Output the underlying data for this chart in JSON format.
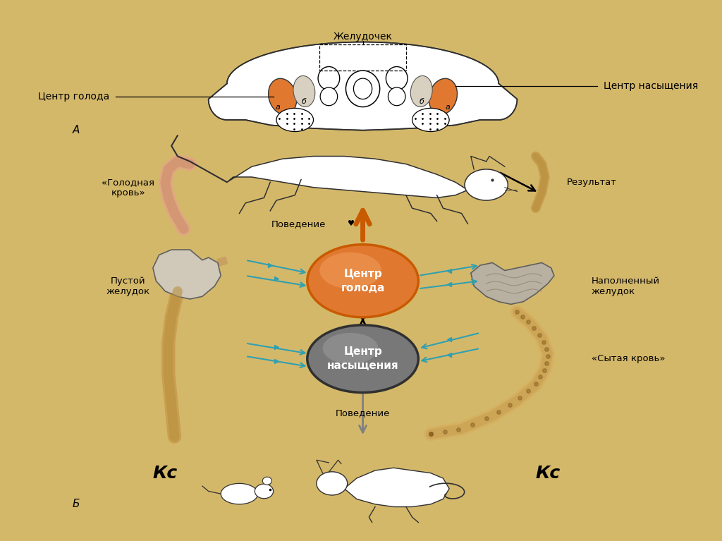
{
  "bg_outer": "#d4b86a",
  "bg_panel": "#f2ead8",
  "orange_dark": "#c85a00",
  "orange_med": "#e07830",
  "orange_light": "#f0a060",
  "gray_center": "#909090",
  "gray_light": "#b8b8b8",
  "tan_tube": "#c8a050",
  "salmon_tube": "#e0a880",
  "cyan_arrow": "#30a0b0",
  "dark_line": "#303030",
  "stomach_fill": "#c8c0a8",
  "stomach_fill2": "#d8d0b8",
  "label_centr_goloda": "Центр голода",
  "label_centr_nasysh": "Центр насыщения",
  "title_top": "Желудочек",
  "label_A": "A",
  "label_B": "Б",
  "center_goloda_text": "Центр\nголода",
  "center_nasysh_text": "Центр\nнасыщения",
  "label_poved_top": "Поведение",
  "label_rezultat": "Результат",
  "label_golodnaya_krov": "«Голодная\nкровь»",
  "label_pustoy_zhel": "Пустой\nжелудок",
  "label_napoln_zhel": "Наполненный\nжелудок",
  "label_sytaya_krov": "«Сытая кровь»",
  "label_poved_bot": "Поведение",
  "label_Ks_left": "Кс",
  "label_Ks_right": "Кс"
}
